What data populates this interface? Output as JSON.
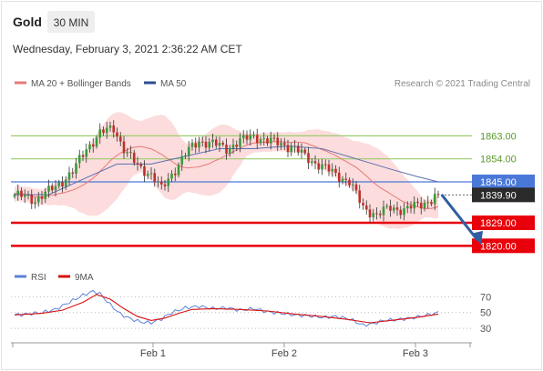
{
  "header": {
    "symbol": "Gold",
    "timeframe": "30 MIN",
    "datetime": "Wednesday, February 3, 2021 2:36:22 AM CET"
  },
  "colors": {
    "bull": "#3a9a3a",
    "bear": "#c0302a",
    "ma20": "#e87878",
    "bands_fill": "#fbd6d6",
    "ma50": "#5a6fb0",
    "resistance": "#9ccc6c",
    "pivot": "#4a78d8",
    "support": "#e8000a",
    "rsi": "#5b82d8",
    "rsi_ma": "#d81010",
    "arrow": "#2f5f9e"
  },
  "chart_data": [
    {
      "type": "candlestick",
      "legend": [
        "MA 20 + Bollinger Bands",
        "MA 50"
      ],
      "credit": "Research © 2021 Trading Central",
      "x_tick_labels": [
        "Feb 1",
        "Feb 2",
        "Feb 3"
      ],
      "ylim": [
        1813,
        1877
      ],
      "anchors": [
        {
          "x": 0,
          "close": 1840
        },
        {
          "x": 6,
          "close": 1838
        },
        {
          "x": 12,
          "close": 1843
        },
        {
          "x": 17,
          "close": 1849
        },
        {
          "x": 21,
          "close": 1858
        },
        {
          "x": 25,
          "close": 1864
        },
        {
          "x": 29,
          "close": 1866
        },
        {
          "x": 32,
          "close": 1858
        },
        {
          "x": 36,
          "close": 1851
        },
        {
          "x": 40,
          "close": 1848
        },
        {
          "x": 43,
          "close": 1842
        },
        {
          "x": 46,
          "close": 1848
        },
        {
          "x": 50,
          "close": 1856
        },
        {
          "x": 54,
          "close": 1861
        },
        {
          "x": 58,
          "close": 1860
        },
        {
          "x": 62,
          "close": 1858
        },
        {
          "x": 66,
          "close": 1861
        },
        {
          "x": 70,
          "close": 1863
        },
        {
          "x": 74,
          "close": 1861
        },
        {
          "x": 78,
          "close": 1860
        },
        {
          "x": 82,
          "close": 1858
        },
        {
          "x": 86,
          "close": 1854
        },
        {
          "x": 90,
          "close": 1851
        },
        {
          "x": 94,
          "close": 1848
        },
        {
          "x": 98,
          "close": 1845
        },
        {
          "x": 102,
          "close": 1835
        },
        {
          "x": 106,
          "close": 1832
        },
        {
          "x": 110,
          "close": 1835
        },
        {
          "x": 114,
          "close": 1834
        },
        {
          "x": 118,
          "close": 1836
        },
        {
          "x": 122,
          "close": 1838
        },
        {
          "x": 124,
          "close": 1839.9
        }
      ],
      "ma50": [
        {
          "x": 0,
          "y": 1840
        },
        {
          "x": 10,
          "y": 1840
        },
        {
          "x": 20,
          "y": 1846
        },
        {
          "x": 30,
          "y": 1852
        },
        {
          "x": 40,
          "y": 1852
        },
        {
          "x": 50,
          "y": 1855
        },
        {
          "x": 60,
          "y": 1858
        },
        {
          "x": 70,
          "y": 1858
        },
        {
          "x": 80,
          "y": 1859
        },
        {
          "x": 90,
          "y": 1858
        },
        {
          "x": 100,
          "y": 1854
        },
        {
          "x": 110,
          "y": 1850
        },
        {
          "x": 118,
          "y": 1847
        },
        {
          "x": 124,
          "y": 1845
        }
      ],
      "levels": [
        {
          "value": 1863.0,
          "label": "1863.00",
          "role": "resistance"
        },
        {
          "value": 1854.0,
          "label": "1854.00",
          "role": "resistance"
        },
        {
          "value": 1845.0,
          "label": "1845.00",
          "role": "pivot"
        },
        {
          "value": 1839.9,
          "label": "1839.90",
          "role": "last"
        },
        {
          "value": 1829.0,
          "label": "1829.00",
          "role": "support"
        },
        {
          "value": 1820.0,
          "label": "1820.00",
          "role": "support"
        }
      ],
      "forecast_arrow": {
        "from_x": 125,
        "from_y": 1840,
        "to_x": 136,
        "to_y": 1820.5
      }
    },
    {
      "type": "line",
      "legend": [
        "RSI",
        "9MA"
      ],
      "ylim": [
        22,
        82
      ],
      "y_ticks": [
        70,
        50,
        30
      ],
      "rsi": [
        {
          "x": 0,
          "y": 47
        },
        {
          "x": 4,
          "y": 48
        },
        {
          "x": 8,
          "y": 50
        },
        {
          "x": 12,
          "y": 54
        },
        {
          "x": 16,
          "y": 63
        },
        {
          "x": 20,
          "y": 72
        },
        {
          "x": 23,
          "y": 77
        },
        {
          "x": 25,
          "y": 74
        },
        {
          "x": 28,
          "y": 60
        },
        {
          "x": 31,
          "y": 48
        },
        {
          "x": 34,
          "y": 42
        },
        {
          "x": 37,
          "y": 38
        },
        {
          "x": 40,
          "y": 37
        },
        {
          "x": 43,
          "y": 42
        },
        {
          "x": 46,
          "y": 50
        },
        {
          "x": 50,
          "y": 56
        },
        {
          "x": 54,
          "y": 58
        },
        {
          "x": 58,
          "y": 55
        },
        {
          "x": 62,
          "y": 56
        },
        {
          "x": 66,
          "y": 53
        },
        {
          "x": 70,
          "y": 55
        },
        {
          "x": 74,
          "y": 51
        },
        {
          "x": 78,
          "y": 49
        },
        {
          "x": 82,
          "y": 47
        },
        {
          "x": 86,
          "y": 46
        },
        {
          "x": 90,
          "y": 44
        },
        {
          "x": 94,
          "y": 45
        },
        {
          "x": 98,
          "y": 42
        },
        {
          "x": 102,
          "y": 34
        },
        {
          "x": 105,
          "y": 36
        },
        {
          "x": 108,
          "y": 40
        },
        {
          "x": 112,
          "y": 41
        },
        {
          "x": 116,
          "y": 43
        },
        {
          "x": 120,
          "y": 46
        },
        {
          "x": 124,
          "y": 50
        }
      ],
      "ma9": [
        {
          "x": 0,
          "y": 47
        },
        {
          "x": 8,
          "y": 49
        },
        {
          "x": 14,
          "y": 53
        },
        {
          "x": 20,
          "y": 63
        },
        {
          "x": 24,
          "y": 73
        },
        {
          "x": 28,
          "y": 67
        },
        {
          "x": 32,
          "y": 55
        },
        {
          "x": 36,
          "y": 45
        },
        {
          "x": 40,
          "y": 40
        },
        {
          "x": 44,
          "y": 43
        },
        {
          "x": 48,
          "y": 49
        },
        {
          "x": 52,
          "y": 54
        },
        {
          "x": 58,
          "y": 55
        },
        {
          "x": 66,
          "y": 54
        },
        {
          "x": 74,
          "y": 52
        },
        {
          "x": 82,
          "y": 48
        },
        {
          "x": 90,
          "y": 45
        },
        {
          "x": 98,
          "y": 41
        },
        {
          "x": 104,
          "y": 37
        },
        {
          "x": 110,
          "y": 40
        },
        {
          "x": 118,
          "y": 44
        },
        {
          "x": 124,
          "y": 48
        }
      ]
    }
  ]
}
